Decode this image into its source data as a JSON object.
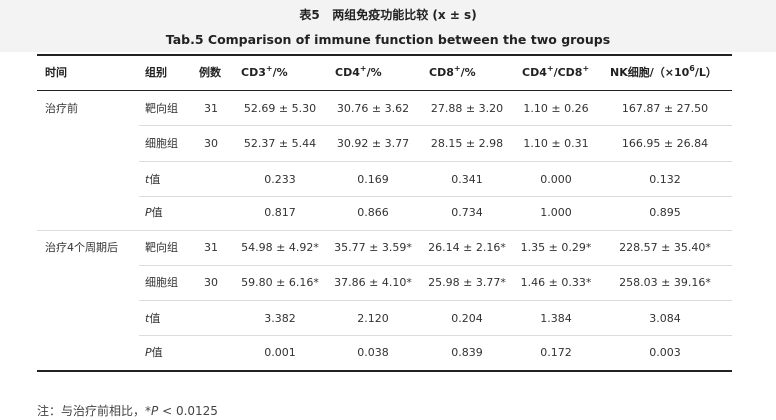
{
  "title": {
    "cn_prefix": "表5",
    "cn_main": "两组免疫功能比较",
    "cn_stat": "(x ± s)",
    "en": "Tab.5  Comparison of immune function between the two groups"
  },
  "headers": {
    "time": "时间",
    "group": "组别",
    "n": "例数",
    "cd3": "CD3",
    "cd3_sup": "+",
    "cd3_unit": "/%",
    "cd4": "CD4",
    "cd4_sup": "+",
    "cd4_unit": "/%",
    "cd8": "CD8",
    "cd8_sup": "+",
    "cd8_unit": "/%",
    "ratio_a": "CD4",
    "ratio_a_sup": "+",
    "ratio_mid": "/CD8",
    "ratio_b_sup": "+",
    "nk_prefix": "NK细胞/（×10",
    "nk_sup": "6",
    "nk_suffix": "/L）"
  },
  "rows": [
    {
      "time": "治疗前",
      "group": "靶向组",
      "n": "31",
      "cd3": "52.69 ± 5.30",
      "cd4": "30.76 ± 3.62",
      "cd8": "27.88 ± 3.20",
      "ratio": "1.10 ± 0.26",
      "nk": "167.87 ± 27.50"
    },
    {
      "time": "",
      "group": "细胞组",
      "n": "30",
      "cd3": "52.37 ± 5.44",
      "cd4": "30.92 ± 3.77",
      "cd8": "28.15 ± 2.98",
      "ratio": "1.10 ± 0.31",
      "nk": "166.95 ± 26.84"
    },
    {
      "time": "",
      "group_italic": "t",
      "group": "值",
      "n": "",
      "cd3": "0.233",
      "cd4": "0.169",
      "cd8": "0.341",
      "ratio": "0.000",
      "nk": "0.132"
    },
    {
      "time": "",
      "group_italic": "P",
      "group": "值",
      "n": "",
      "cd3": "0.817",
      "cd4": "0.866",
      "cd8": "0.734",
      "ratio": "1.000",
      "nk": "0.895"
    },
    {
      "time": "治疗4个周期后",
      "group": "靶向组",
      "n": "31",
      "cd3": "54.98 ± 4.92*",
      "cd4": "35.77 ± 3.59*",
      "cd8": "26.14 ± 2.16*",
      "ratio": "1.35 ± 0.29*",
      "nk": "228.57 ± 35.40*"
    },
    {
      "time": "",
      "group": "细胞组",
      "n": "30",
      "cd3": "59.80 ± 6.16*",
      "cd4": "37.86 ± 4.10*",
      "cd8": "25.98 ± 3.77*",
      "ratio": "1.46 ± 0.33*",
      "nk": "258.03 ± 39.16*"
    },
    {
      "time": "",
      "group_italic": "t",
      "group": "值",
      "n": "",
      "cd3": "3.382",
      "cd4": "2.120",
      "cd8": "0.204",
      "ratio": "1.384",
      "nk": "3.084"
    },
    {
      "time": "",
      "group_italic": "P",
      "group": "值",
      "n": "",
      "cd3": "0.001",
      "cd4": "0.038",
      "cd8": "0.839",
      "ratio": "0.172",
      "nk": "0.003"
    }
  ],
  "note": {
    "prefix": "注：与治疗前相比，*",
    "italic": "P",
    "suffix": " < 0.0125"
  }
}
